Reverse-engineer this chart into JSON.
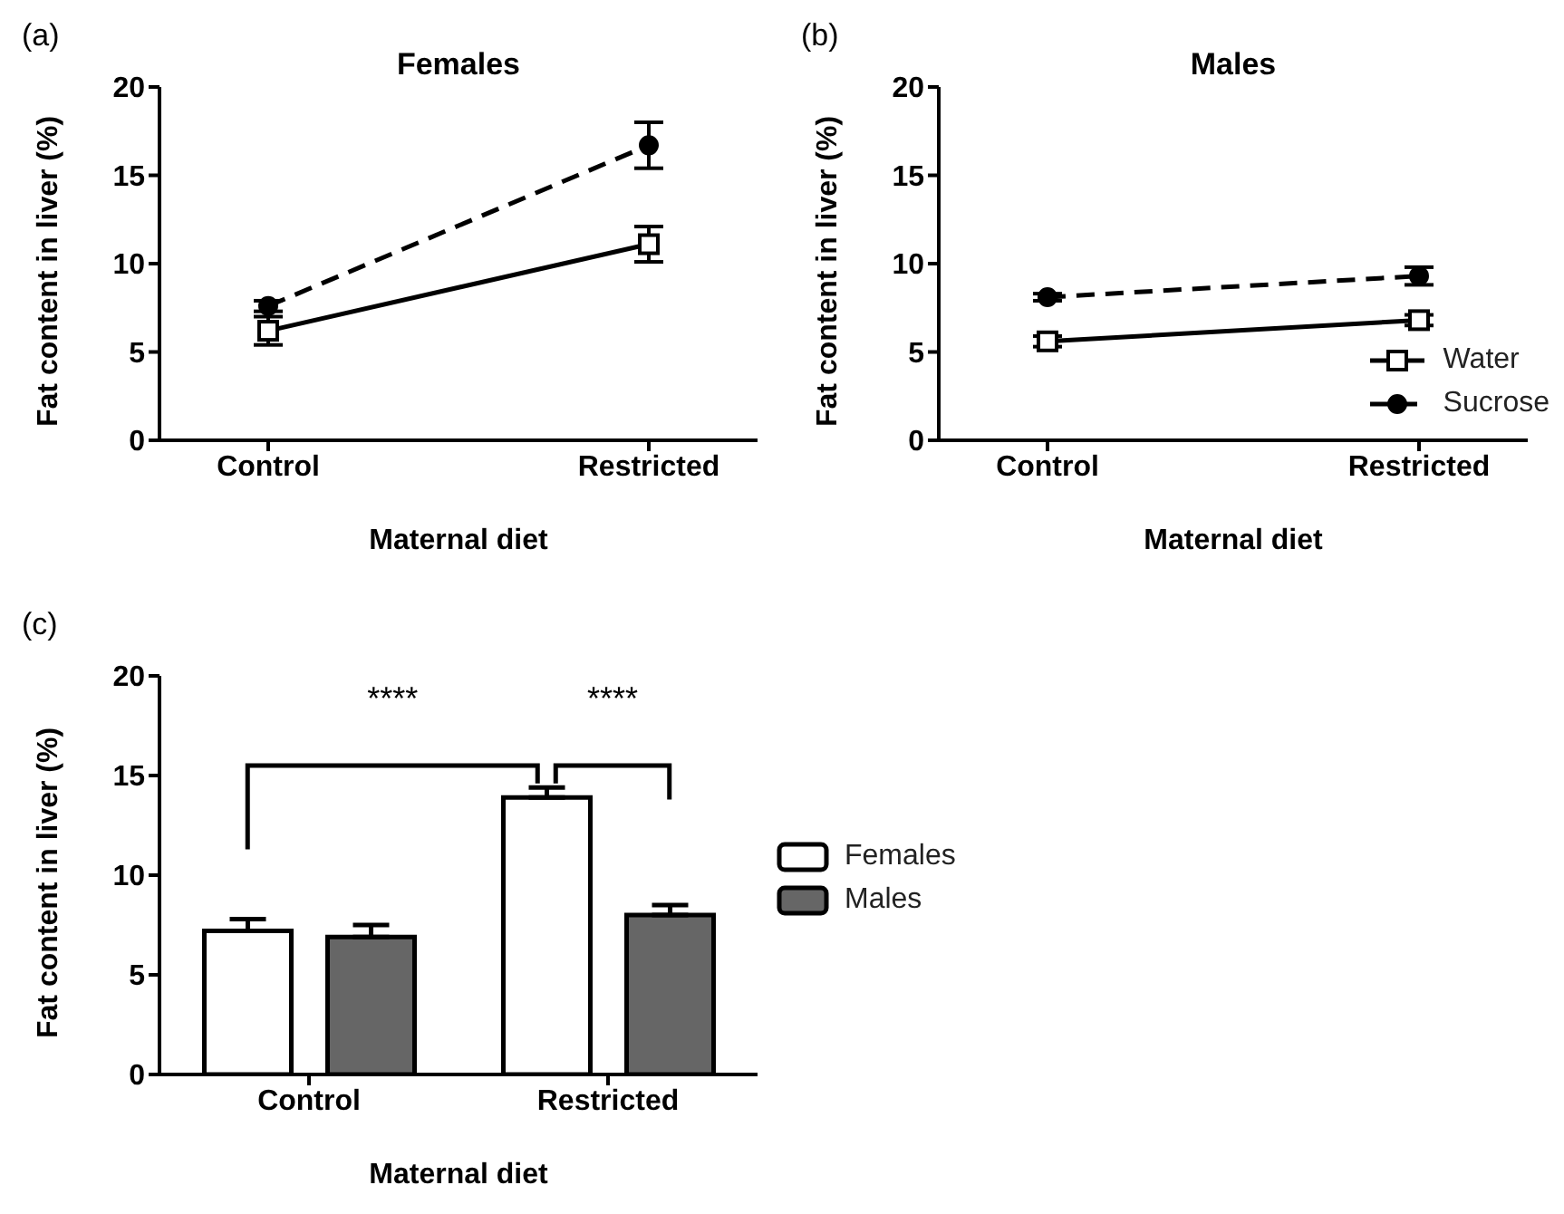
{
  "chart_data": [
    {
      "type": "line",
      "title": "Females",
      "xlabel": "Maternal diet",
      "ylabel": "Fat content in liver (%)",
      "categories": [
        "Control",
        "Restricted"
      ],
      "ylim": [
        0,
        20
      ],
      "yticks": [
        0,
        5,
        10,
        15,
        20
      ],
      "annotations": [
        "(a)"
      ],
      "series": [
        {
          "color": "#000000",
          "values": [
            6.2,
            11.1
          ],
          "errors": [
            0.8,
            1.0
          ],
          "line_style": "solid",
          "marker": "square"
        },
        {
          "color": "#000000",
          "values": [
            7.6,
            16.7
          ],
          "errors": [
            0.3,
            1.3
          ],
          "line_style": "dashed",
          "marker": "circle"
        }
      ]
    },
    {
      "type": "line",
      "title": "Males",
      "xlabel": "Maternal diet",
      "ylabel": "Fat content in liver (%)",
      "categories": [
        "Control",
        "Restricted"
      ],
      "ylim": [
        0,
        20
      ],
      "yticks": [
        0,
        5,
        10,
        15,
        20
      ],
      "annotations": [
        "(b)"
      ],
      "legend": "bottom right",
      "series": [
        {
          "name": "Water",
          "color": "#000000",
          "values": [
            5.6,
            6.8
          ],
          "errors": [
            0.3,
            0.3
          ],
          "line_style": "solid",
          "marker": "square"
        },
        {
          "name": "Sucrose",
          "color": "#000000",
          "values": [
            8.1,
            9.3
          ],
          "errors": [
            0.2,
            0.5
          ],
          "line_style": "dashed",
          "marker": "circle"
        }
      ]
    },
    {
      "type": "bar",
      "xlabel": "Maternal diet",
      "ylabel": "Fat content in liver (%)",
      "categories": [
        "Control",
        "Restricted"
      ],
      "ylim": [
        0,
        20
      ],
      "yticks": [
        0,
        5,
        10,
        15,
        20
      ],
      "annotations": [
        "(c)",
        "****",
        "****"
      ],
      "legend": "right",
      "series": [
        {
          "name": "Females",
          "color": "#ffffff",
          "values": [
            7.2,
            13.9
          ],
          "errors": [
            [
              7.2,
              7.8
            ],
            [
              13.9,
              14.4
            ]
          ]
        },
        {
          "name": "Males",
          "color": "#666666",
          "values": [
            6.9,
            8.0
          ],
          "errors": [
            [
              6.9,
              7.5
            ],
            [
              8.0,
              8.5
            ]
          ]
        }
      ]
    }
  ]
}
